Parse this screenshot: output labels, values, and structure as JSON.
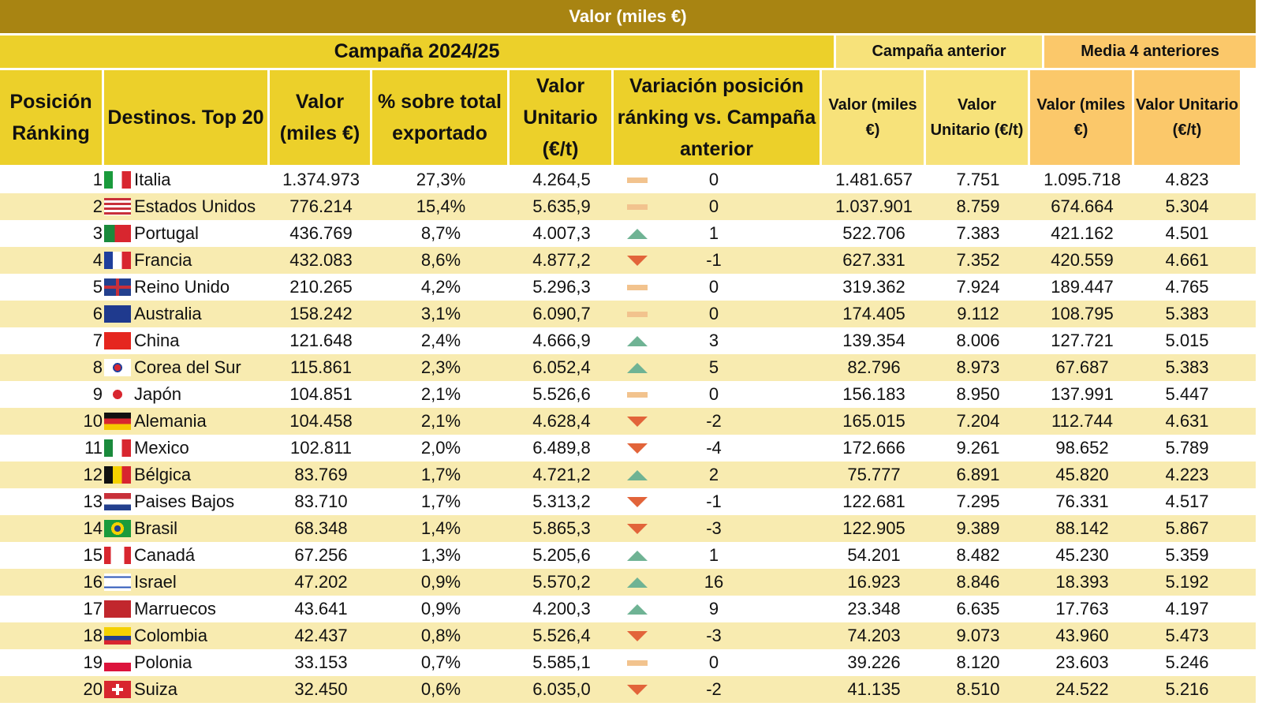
{
  "title": "Valor (miles €)",
  "groups": {
    "current": "Campaña 2024/25",
    "previous": "Campaña anterior",
    "avg": "Media 4 anteriores"
  },
  "headers": [
    "Posición Ránking",
    "Destinos. Top 20",
    "Valor (miles €)",
    "% sobre total exportado",
    "Valor Unitario (€/t)",
    "Variación posición ránking vs. Campaña anterior",
    "Valor (miles €)",
    "Valor Unitario (€/t)",
    "Valor (miles €)",
    "Valor Unitario (€/t)"
  ],
  "colors": {
    "title": "#a88412",
    "header": "#ecd02a",
    "prev": "#f7e27a",
    "avg": "#fbc86a",
    "up": "#6fb394",
    "down": "#e2643a",
    "equal": "#f2c38e"
  },
  "rows": [
    {
      "pos": "1",
      "flag": "flag-italy",
      "name": "Italia",
      "valor": "1.374.973",
      "pct": "27,3%",
      "unit": "4.264,5",
      "trend": "equal",
      "var": "0",
      "pv": "1.481.657",
      "pu": "7.751",
      "mv": "1.095.718",
      "mu": "4.823"
    },
    {
      "pos": "2",
      "flag": "flag-usa",
      "name": "Estados Unidos",
      "valor": "776.214",
      "pct": "15,4%",
      "unit": "5.635,9",
      "trend": "equal",
      "var": "0",
      "pv": "1.037.901",
      "pu": "8.759",
      "mv": "674.664",
      "mu": "5.304"
    },
    {
      "pos": "3",
      "flag": "flag-portugal",
      "name": "Portugal",
      "valor": "436.769",
      "pct": "8,7%",
      "unit": "4.007,3",
      "trend": "up",
      "var": "1",
      "pv": "522.706",
      "pu": "7.383",
      "mv": "421.162",
      "mu": "4.501"
    },
    {
      "pos": "4",
      "flag": "flag-france",
      "name": "Francia",
      "valor": "432.083",
      "pct": "8,6%",
      "unit": "4.877,2",
      "trend": "down",
      "var": "-1",
      "pv": "627.331",
      "pu": "7.352",
      "mv": "420.559",
      "mu": "4.661"
    },
    {
      "pos": "5",
      "flag": "flag-uk",
      "name": "Reino Unido",
      "valor": "210.265",
      "pct": "4,2%",
      "unit": "5.296,3",
      "trend": "equal",
      "var": "0",
      "pv": "319.362",
      "pu": "7.924",
      "mv": "189.447",
      "mu": "4.765"
    },
    {
      "pos": "6",
      "flag": "flag-australia",
      "name": "Australia",
      "valor": "158.242",
      "pct": "3,1%",
      "unit": "6.090,7",
      "trend": "equal",
      "var": "0",
      "pv": "174.405",
      "pu": "9.112",
      "mv": "108.795",
      "mu": "5.383"
    },
    {
      "pos": "7",
      "flag": "flag-china",
      "name": "China",
      "valor": "121.648",
      "pct": "2,4%",
      "unit": "4.666,9",
      "trend": "up",
      "var": "3",
      "pv": "139.354",
      "pu": "8.006",
      "mv": "127.721",
      "mu": "5.015"
    },
    {
      "pos": "8",
      "flag": "flag-south-korea",
      "name": "Corea del Sur",
      "valor": "115.861",
      "pct": "2,3%",
      "unit": "6.052,4",
      "trend": "up",
      "var": "5",
      "pv": "82.796",
      "pu": "8.973",
      "mv": "67.687",
      "mu": "5.383"
    },
    {
      "pos": "9",
      "flag": "flag-japan",
      "name": "Japón",
      "valor": "104.851",
      "pct": "2,1%",
      "unit": "5.526,6",
      "trend": "equal",
      "var": "0",
      "pv": "156.183",
      "pu": "8.950",
      "mv": "137.991",
      "mu": "5.447"
    },
    {
      "pos": "10",
      "flag": "flag-germany",
      "name": "Alemania",
      "valor": "104.458",
      "pct": "2,1%",
      "unit": "4.628,4",
      "trend": "down",
      "var": "-2",
      "pv": "165.015",
      "pu": "7.204",
      "mv": "112.744",
      "mu": "4.631"
    },
    {
      "pos": "11",
      "flag": "flag-mexico",
      "name": "Mexico",
      "valor": "102.811",
      "pct": "2,0%",
      "unit": "6.489,8",
      "trend": "down",
      "var": "-4",
      "pv": "172.666",
      "pu": "9.261",
      "mv": "98.652",
      "mu": "5.789"
    },
    {
      "pos": "12",
      "flag": "flag-belgium",
      "name": "Bélgica",
      "valor": "83.769",
      "pct": "1,7%",
      "unit": "4.721,2",
      "trend": "up",
      "var": "2",
      "pv": "75.777",
      "pu": "6.891",
      "mv": "45.820",
      "mu": "4.223"
    },
    {
      "pos": "13",
      "flag": "flag-netherlands",
      "name": "Paises Bajos",
      "valor": "83.710",
      "pct": "1,7%",
      "unit": "5.313,2",
      "trend": "down",
      "var": "-1",
      "pv": "122.681",
      "pu": "7.295",
      "mv": "76.331",
      "mu": "4.517"
    },
    {
      "pos": "14",
      "flag": "flag-brazil",
      "name": "Brasil",
      "valor": "68.348",
      "pct": "1,4%",
      "unit": "5.865,3",
      "trend": "down",
      "var": "-3",
      "pv": "122.905",
      "pu": "9.389",
      "mv": "88.142",
      "mu": "5.867"
    },
    {
      "pos": "15",
      "flag": "flag-canada",
      "name": "Canadá",
      "valor": "67.256",
      "pct": "1,3%",
      "unit": "5.205,6",
      "trend": "up",
      "var": "1",
      "pv": "54.201",
      "pu": "8.482",
      "mv": "45.230",
      "mu": "5.359"
    },
    {
      "pos": "16",
      "flag": "flag-israel",
      "name": "Israel",
      "valor": "47.202",
      "pct": "0,9%",
      "unit": "5.570,2",
      "trend": "up",
      "var": "16",
      "pv": "16.923",
      "pu": "8.846",
      "mv": "18.393",
      "mu": "5.192"
    },
    {
      "pos": "17",
      "flag": "flag-morocco",
      "name": "Marruecos",
      "valor": "43.641",
      "pct": "0,9%",
      "unit": "4.200,3",
      "trend": "up",
      "var": "9",
      "pv": "23.348",
      "pu": "6.635",
      "mv": "17.763",
      "mu": "4.197"
    },
    {
      "pos": "18",
      "flag": "flag-colombia",
      "name": "Colombia",
      "valor": "42.437",
      "pct": "0,8%",
      "unit": "5.526,4",
      "trend": "down",
      "var": "-3",
      "pv": "74.203",
      "pu": "9.073",
      "mv": "43.960",
      "mu": "5.473"
    },
    {
      "pos": "19",
      "flag": "flag-poland",
      "name": "Polonia",
      "valor": "33.153",
      "pct": "0,7%",
      "unit": "5.585,1",
      "trend": "equal",
      "var": "0",
      "pv": "39.226",
      "pu": "8.120",
      "mv": "23.603",
      "mu": "5.246"
    },
    {
      "pos": "20",
      "flag": "flag-switzerland",
      "name": "Suiza",
      "valor": "32.450",
      "pct": "0,6%",
      "unit": "6.035,0",
      "trend": "down",
      "var": "-2",
      "pv": "41.135",
      "pu": "8.510",
      "mv": "24.522",
      "mu": "5.216"
    }
  ]
}
